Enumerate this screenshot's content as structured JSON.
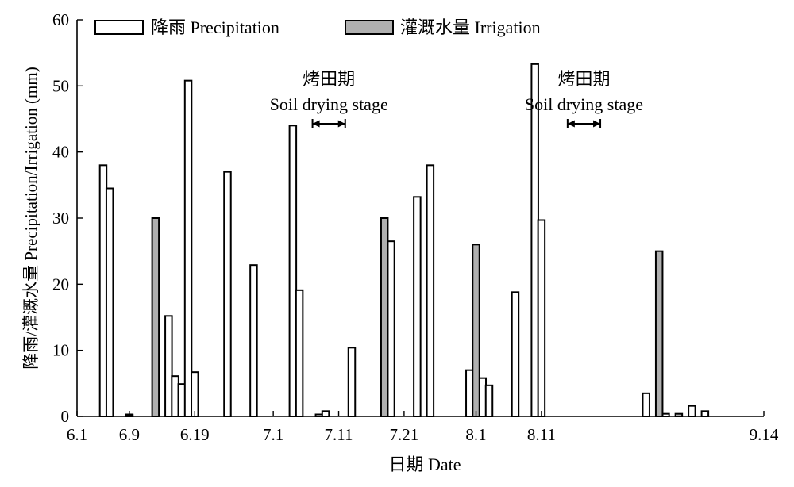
{
  "chart_data": {
    "type": "bar",
    "xlabel": "日期 Date",
    "ylabel": "降雨/灌溉水量 Precipitation/Irrigation (mm)",
    "ylim": [
      0,
      60
    ],
    "yticks": [
      0,
      10,
      20,
      30,
      40,
      50,
      60
    ],
    "xlim": [
      "6.1",
      "9.14"
    ],
    "xtick_labels": [
      {
        "label": "6.1",
        "date": "06-01"
      },
      {
        "label": "6.9",
        "date": "06-09"
      },
      {
        "label": "6.19",
        "date": "06-19"
      },
      {
        "label": "7.1",
        "date": "07-01"
      },
      {
        "label": "7.11",
        "date": "07-11"
      },
      {
        "label": "7.21",
        "date": "07-21"
      },
      {
        "label": "8.1",
        "date": "08-01"
      },
      {
        "label": "8.11",
        "date": "08-11"
      },
      {
        "label": "9.14",
        "date": "09-14"
      }
    ],
    "legend": {
      "position": "top",
      "entries": [
        "降雨 Precipitation",
        "灌溉水量 Irrigation"
      ]
    },
    "colors": {
      "precipitation": "#ffffff",
      "irrigation": "#b0b0b0",
      "stroke": "#000000"
    },
    "series": [
      {
        "name": "降雨 Precipitation",
        "points": [
          {
            "date": "06-05",
            "value": 38.0
          },
          {
            "date": "06-06",
            "value": 34.5
          },
          {
            "date": "06-09",
            "value": 0.3
          },
          {
            "date": "06-15",
            "value": 15.2
          },
          {
            "date": "06-16",
            "value": 6.1
          },
          {
            "date": "06-17",
            "value": 4.9
          },
          {
            "date": "06-18",
            "value": 50.8
          },
          {
            "date": "06-19",
            "value": 6.7
          },
          {
            "date": "06-24",
            "value": 37.0
          },
          {
            "date": "06-28",
            "value": 22.9
          },
          {
            "date": "07-04",
            "value": 44.0
          },
          {
            "date": "07-05",
            "value": 19.1
          },
          {
            "date": "07-08",
            "value": 0.3
          },
          {
            "date": "07-09",
            "value": 0.8
          },
          {
            "date": "07-13",
            "value": 10.4
          },
          {
            "date": "07-18",
            "value": 0.1
          },
          {
            "date": "07-19",
            "value": 26.5
          },
          {
            "date": "07-23",
            "value": 33.2
          },
          {
            "date": "07-25",
            "value": 38.0
          },
          {
            "date": "07-31",
            "value": 7.0
          },
          {
            "date": "08-02",
            "value": 5.8
          },
          {
            "date": "08-03",
            "value": 4.7
          },
          {
            "date": "08-07",
            "value": 18.8
          },
          {
            "date": "08-10",
            "value": 53.3
          },
          {
            "date": "08-11",
            "value": 29.7
          },
          {
            "date": "08-27",
            "value": 3.5
          },
          {
            "date": "08-30",
            "value": 0.4
          },
          {
            "date": "09-03",
            "value": 1.6
          },
          {
            "date": "09-05",
            "value": 0.8
          }
        ]
      },
      {
        "name": "灌溉水量 Irrigation",
        "points": [
          {
            "date": "06-09",
            "value": 0.2
          },
          {
            "date": "06-13",
            "value": 30.0
          },
          {
            "date": "07-18",
            "value": 30.0
          },
          {
            "date": "08-01",
            "value": 26.0
          },
          {
            "date": "08-29",
            "value": 25.0
          },
          {
            "date": "09-01",
            "value": 0.4
          }
        ]
      }
    ],
    "annotations": [
      {
        "label": "烤田期",
        "sublabel": "Soil drying stage",
        "range": [
          "07-07",
          "07-12"
        ]
      },
      {
        "label": "烤田期",
        "sublabel": "Soil drying stage",
        "range": [
          "08-15",
          "08-20"
        ]
      }
    ]
  }
}
